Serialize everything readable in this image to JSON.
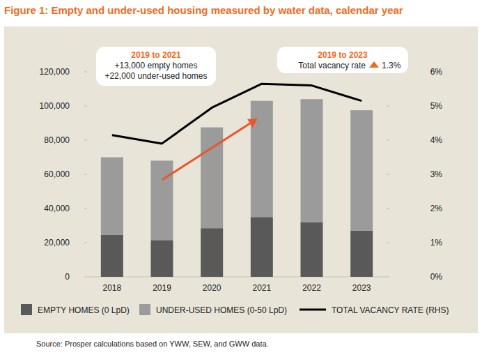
{
  "chart_data": {
    "type": "bar",
    "title": "Figure 1: Empty and under-used housing measured by water data, calendar year",
    "source": "Source: Prosper calculations based on YWW, SEW, and GWW data.",
    "stacked": true,
    "grid": false,
    "legend": "bottom",
    "categories": [
      "2018",
      "2019",
      "2020",
      "2021",
      "2022",
      "2023"
    ],
    "series": [
      {
        "name": "EMPTY HOMES (0 LpD)",
        "color": "#595959",
        "values": [
          24500,
          21500,
          28500,
          35000,
          32000,
          27000
        ]
      },
      {
        "name": "UNDER-USED HOMES (0-50 LpD)",
        "color": "#9b9b9b",
        "values": [
          45500,
          46500,
          59000,
          68000,
          72000,
          70500
        ]
      },
      {
        "name": "TOTAL VACANCY RATE (RHS)",
        "type": "line",
        "axis": "y2",
        "color": "#000000",
        "values": [
          4.15,
          3.9,
          4.95,
          5.65,
          5.6,
          5.15
        ]
      }
    ],
    "ylim": [
      0,
      120000
    ],
    "yticks": [
      0,
      {
        "value": 20000,
        "label": "20,000"
      },
      {
        "value": 40000,
        "label": "40,000"
      },
      {
        "value": 60000,
        "label": "60,000"
      },
      {
        "value": 80000,
        "label": "80,000"
      },
      {
        "value": 100000,
        "label": "100,000"
      },
      {
        "value": 120000,
        "label": "120,000"
      }
    ],
    "y2lim": [
      0,
      6
    ],
    "y2ticks": [
      {
        "value": 0,
        "label": "0%"
      },
      {
        "value": 1,
        "label": "1%"
      },
      {
        "value": 2,
        "label": "2%"
      },
      {
        "value": 3,
        "label": "3%"
      },
      {
        "value": 4,
        "label": "4%"
      },
      {
        "value": 5,
        "label": "5%"
      },
      {
        "value": 6,
        "label": "6%"
      }
    ],
    "annotations": [
      {
        "title": "2019 to 2021",
        "lines": [
          "+13,000 empty homes",
          "+22,000 under-used homes"
        ]
      },
      {
        "title": "2019 to 2023",
        "text": "Total vacancy rate",
        "change": "1.3%"
      }
    ]
  }
}
